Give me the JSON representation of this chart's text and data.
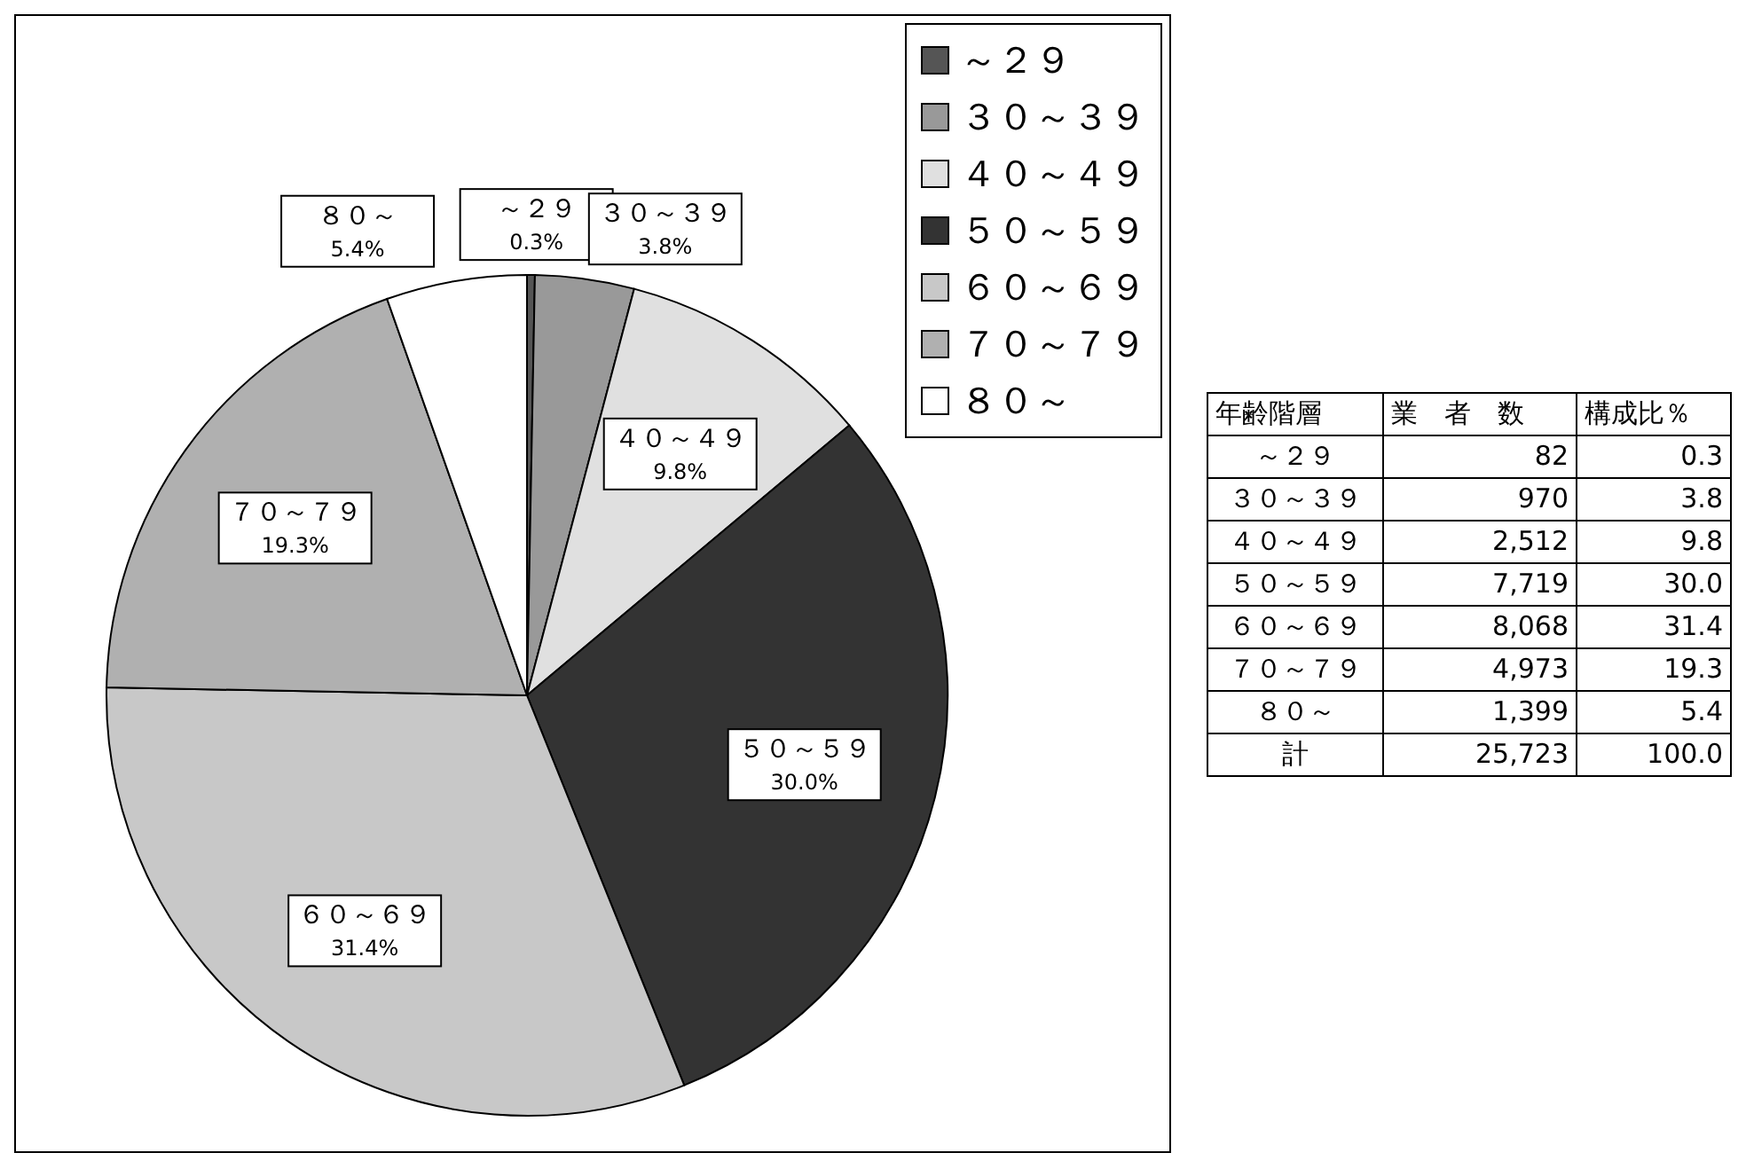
{
  "chart_data": {
    "type": "pie",
    "categories": [
      "～２９",
      "３０～３９",
      "４０～４９",
      "５０～５９",
      "６０～６９",
      "７０～７９",
      "８０～"
    ],
    "values": [
      0.3,
      3.8,
      9.8,
      30.0,
      31.4,
      19.3,
      5.4
    ],
    "value_labels": [
      "0.3%",
      "3.8%",
      "9.8%",
      "30.0%",
      "31.4%",
      "19.3%",
      "5.4%"
    ],
    "colors": [
      "#555555",
      "#999999",
      "#e0e0e0",
      "#333333",
      "#c8c8c8",
      "#b0b0b0",
      "#ffffff"
    ],
    "legend": "top right",
    "annotations": [
      "年齢階層",
      "業　者　数",
      "構成比％",
      "～２９",
      "82",
      "0.3",
      "３０～３９",
      "970",
      "3.8",
      "４０～４９",
      "2,512",
      "9.8",
      "５０～５９",
      "7,719",
      "30.0",
      "６０～６９",
      "8,068",
      "31.4",
      "７０～７９",
      "4,973",
      "19.3",
      "８０～",
      "1,399",
      "5.4",
      "計",
      "25,723",
      "100.0"
    ]
  }
}
